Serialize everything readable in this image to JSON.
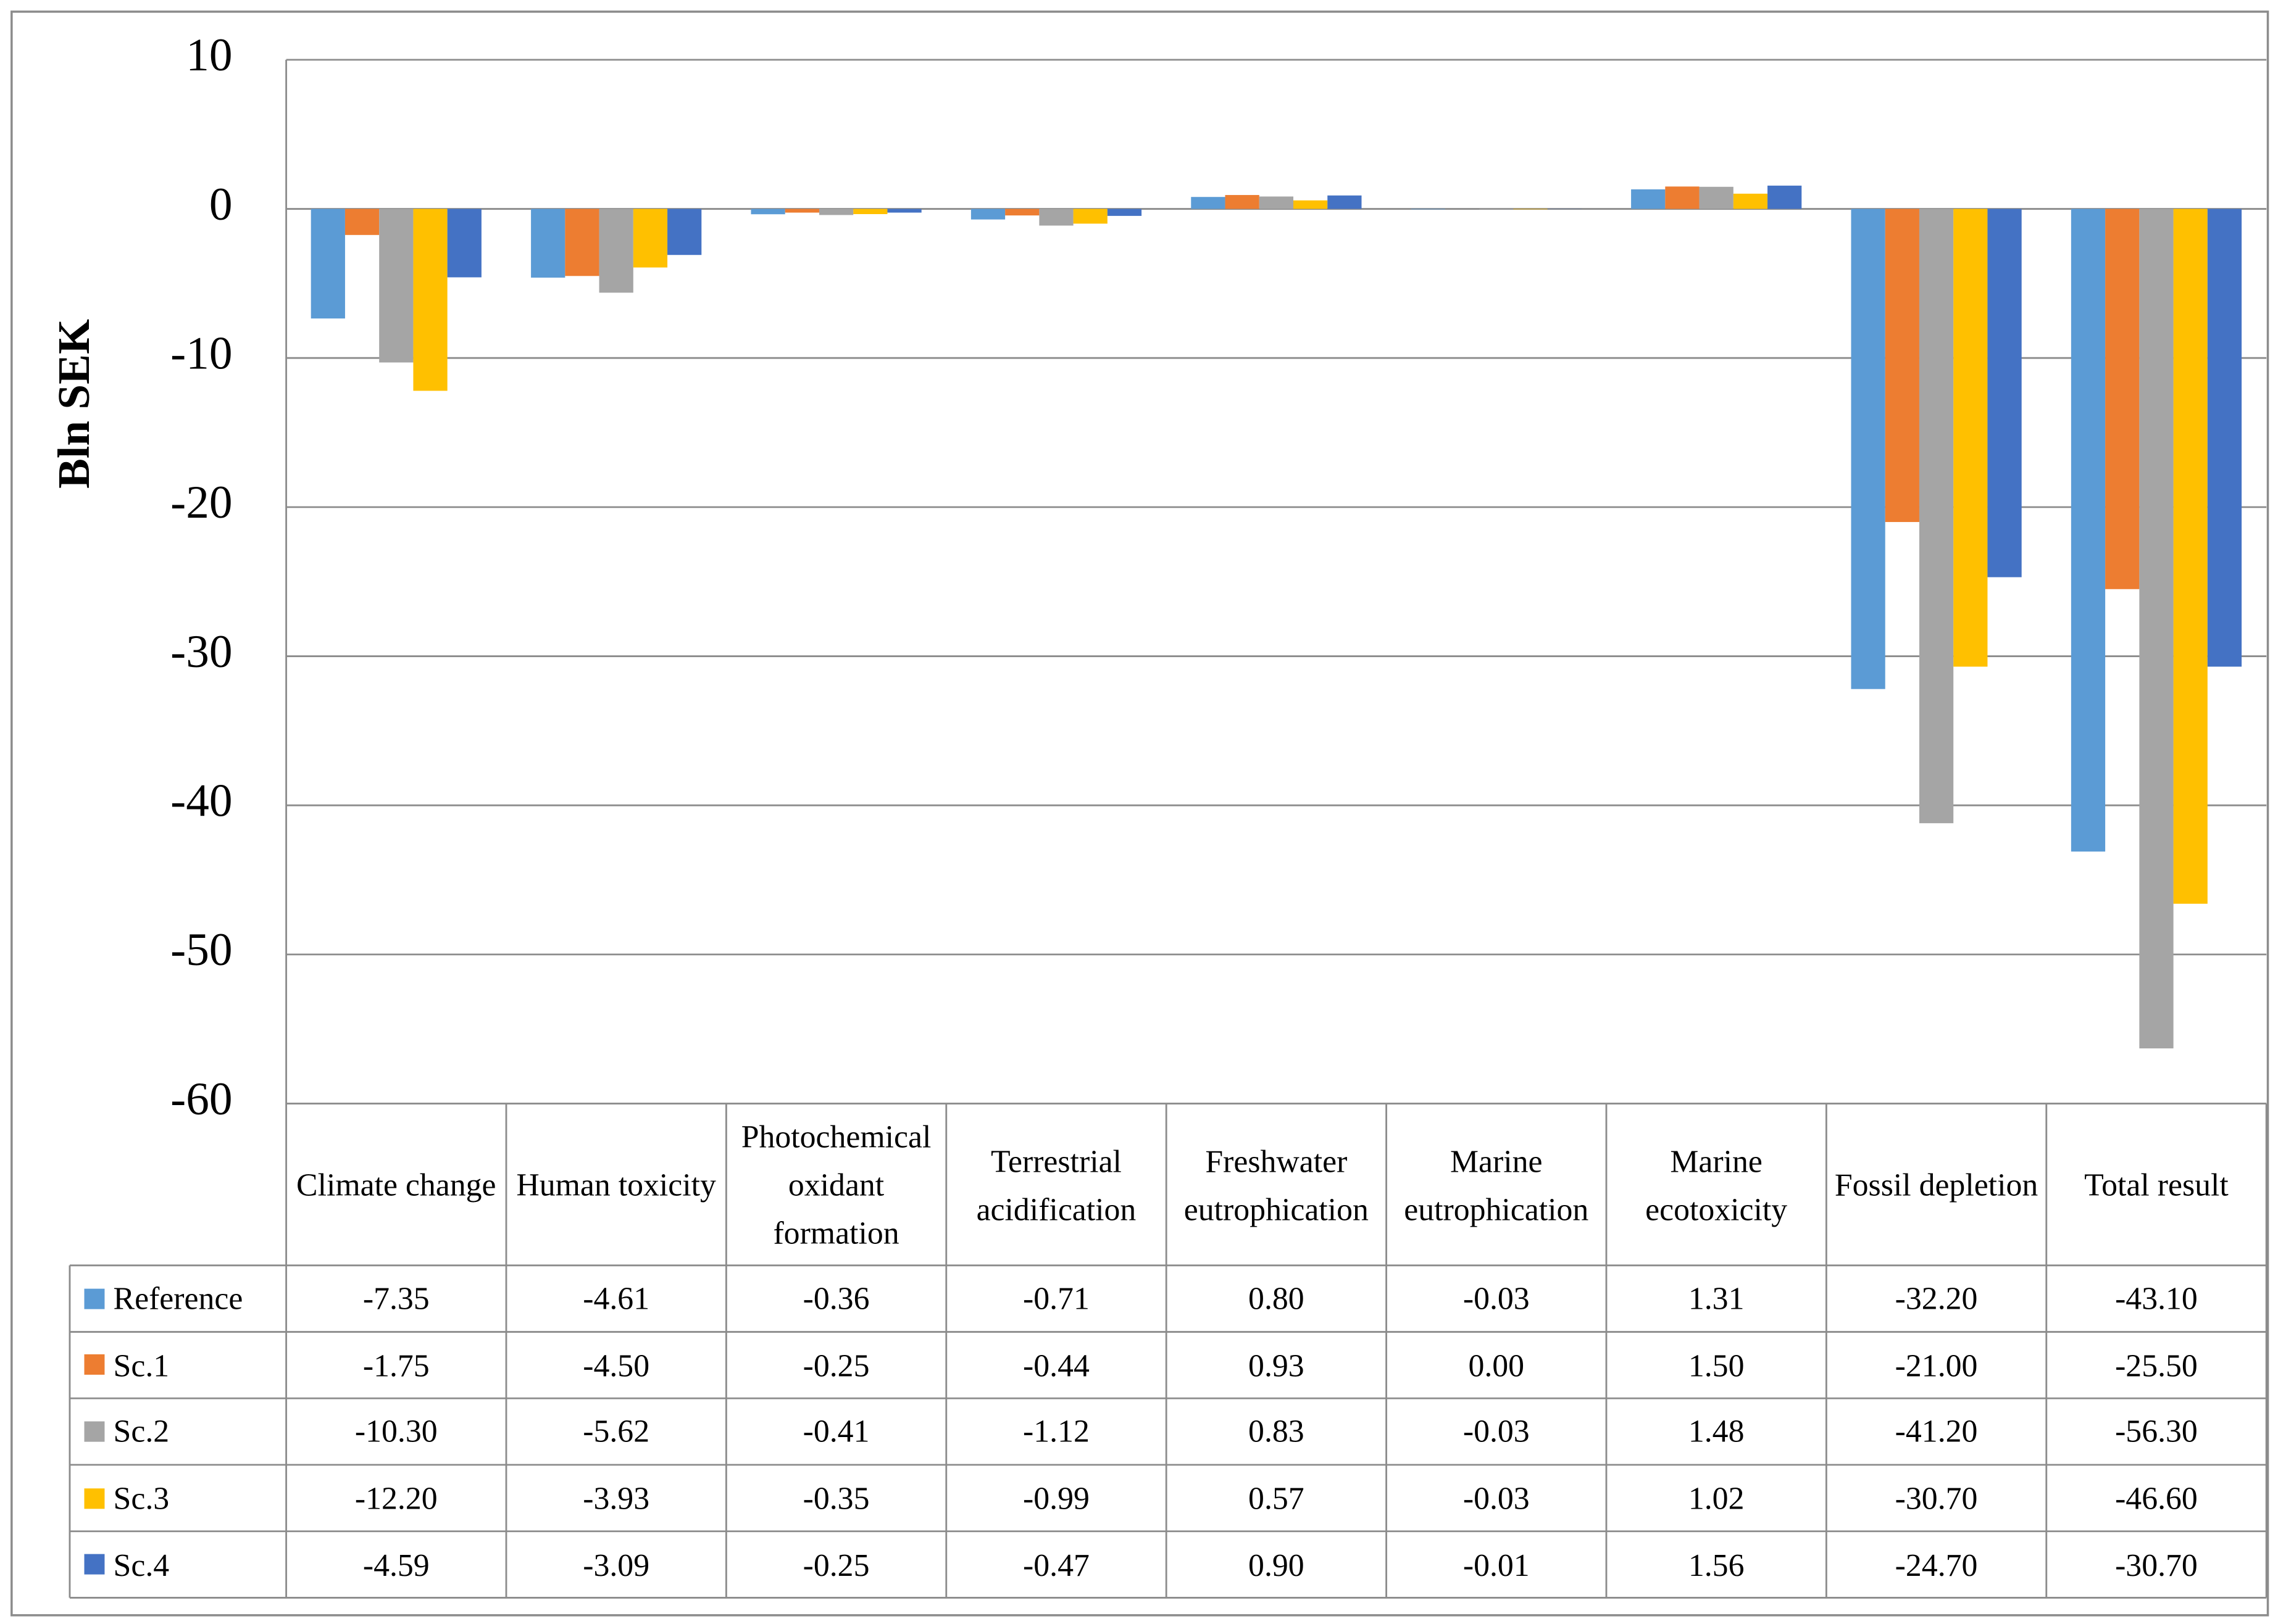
{
  "chart_data": {
    "type": "bar",
    "ylabel": "Bln SEK",
    "categories": [
      "Climate change",
      "Human toxicity",
      "Photochemical oxidant formation",
      "Terrestrial acidification",
      "Freshwater eutrophication",
      "Marine eutrophication",
      "Marine ecotoxicity",
      "Fossil depletion",
      "Total result"
    ],
    "series": [
      {
        "name": "Reference",
        "color": "#5b9bd5",
        "values": [
          -7.35,
          -4.61,
          -0.36,
          -0.71,
          0.8,
          -0.03,
          1.31,
          -32.2,
          -43.1
        ],
        "value_labels": [
          "-7.35",
          "-4.61",
          "-0.36",
          "-0.71",
          "0.80",
          "-0.03",
          "1.31",
          "-32.20",
          "-43.10"
        ]
      },
      {
        "name": "Sc.1",
        "color": "#ed7d31",
        "values": [
          -1.75,
          -4.5,
          -0.25,
          -0.44,
          0.93,
          0,
          1.5,
          -21,
          -25.5
        ],
        "value_labels": [
          "-1.75",
          "-4.50",
          "-0.25",
          "-0.44",
          "0.93",
          "0.00",
          "1.50",
          "-21.00",
          "-25.50"
        ]
      },
      {
        "name": "Sc.2",
        "color": "#a5a5a5",
        "values": [
          -10.3,
          -5.62,
          -0.41,
          -1.12,
          0.83,
          -0.03,
          1.48,
          -41.2,
          -56.3
        ],
        "value_labels": [
          "-10.30",
          "-5.62",
          "-0.41",
          "-1.12",
          "0.83",
          "-0.03",
          "1.48",
          "-41.20",
          "-56.30"
        ]
      },
      {
        "name": "Sc.3",
        "color": "#ffc000",
        "values": [
          -12.2,
          -3.93,
          -0.35,
          -0.99,
          0.57,
          -0.03,
          1.02,
          -30.7,
          -46.6
        ],
        "value_labels": [
          "-12.20",
          "-3.93",
          "-0.35",
          "-0.99",
          "0.57",
          "-0.03",
          "1.02",
          "-30.70",
          "-46.60"
        ]
      },
      {
        "name": "Sc.4",
        "color": "#4472c4",
        "values": [
          -4.59,
          -3.09,
          -0.25,
          -0.47,
          0.9,
          -0.01,
          1.56,
          -24.7,
          -30.7
        ],
        "value_labels": [
          "-4.59",
          "-3.09",
          "-0.25",
          "-0.47",
          "0.90",
          "-0.01",
          "1.56",
          "-24.70",
          "-30.70"
        ]
      }
    ],
    "ylim": [
      -60,
      10
    ],
    "yticks": [
      -60,
      -50,
      -40,
      -30,
      -20,
      -10,
      0,
      10
    ],
    "grid": true
  }
}
